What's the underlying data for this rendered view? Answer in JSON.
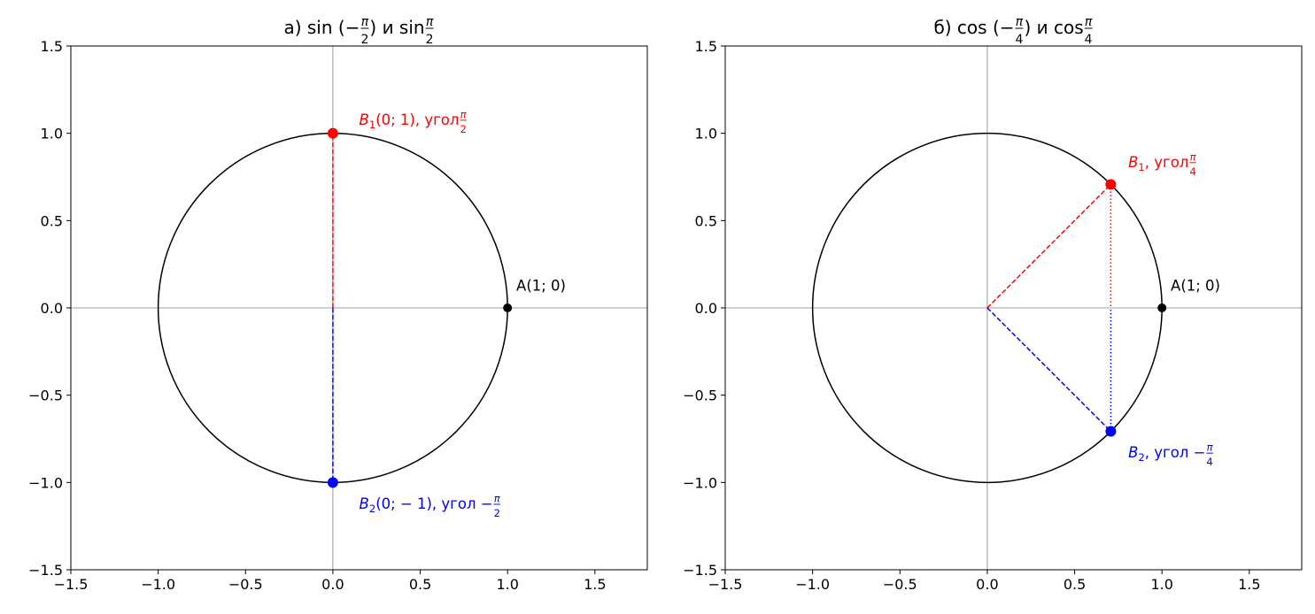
{
  "chart_data": [
    {
      "type": "line",
      "title": [
        {
          "t": "а) sin "
        },
        {
          "t": "("
        },
        {
          "t": "−"
        },
        {
          "frac": [
            "π",
            "2"
          ]
        },
        {
          "t": ")"
        },
        {
          "t": " и sin"
        },
        {
          "frac": [
            "π",
            "2"
          ]
        }
      ],
      "xlim": [
        -1.5,
        1.8
      ],
      "ylim": [
        -1.5,
        1.5
      ],
      "xticks": [
        -1.5,
        -1.0,
        -0.5,
        0.0,
        0.5,
        1.0,
        1.5
      ],
      "xtick_labels": [
        "−1.5",
        "−1.0",
        "−0.5",
        "0.0",
        "0.5",
        "1.0",
        "1.5"
      ],
      "yticks": [
        -1.5,
        -1.0,
        -0.5,
        0.0,
        0.5,
        1.0,
        1.5
      ],
      "ytick_labels": [
        "−1.5",
        "−1.0",
        "−0.5",
        "0.0",
        "0.5",
        "1.0",
        "1.5"
      ],
      "grid": false,
      "circle": {
        "center": [
          0,
          0
        ],
        "radius": 1,
        "color": "#000000"
      },
      "lines": [
        {
          "name": "b1-radius",
          "from": [
            0,
            0
          ],
          "to": [
            0,
            1
          ],
          "color": "#ff0000",
          "style": "dashed"
        },
        {
          "name": "b2-radius",
          "from": [
            0,
            0
          ],
          "to": [
            0,
            -1
          ],
          "color": "#0000ff",
          "style": "dashed"
        }
      ],
      "points": [
        {
          "name": "A",
          "x": 1,
          "y": 0,
          "color": "#000000",
          "size": "small"
        },
        {
          "name": "B1",
          "x": 0,
          "y": 1,
          "color": "#ff0000",
          "size": "large"
        },
        {
          "name": "B2",
          "x": 0,
          "y": -1,
          "color": "#0000ff",
          "size": "large"
        }
      ],
      "annotations": [
        {
          "name": "a-label",
          "x": 1.05,
          "y": 0.1,
          "color": "#000000",
          "parts": [
            {
              "t": "A(1; 0)"
            }
          ]
        },
        {
          "name": "b1-label",
          "x": 0.15,
          "y": 1.05,
          "color": "#ff0000",
          "parts": [
            {
              "t": "B",
              "it": true
            },
            {
              "t": "1",
              "sub": true
            },
            {
              "t": "(0; 1), угол "
            },
            {
              "frac": [
                "π",
                "2"
              ]
            }
          ]
        },
        {
          "name": "b2-label",
          "x": 0.15,
          "y": -1.15,
          "color": "#0000ff",
          "parts": [
            {
              "t": "B",
              "it": true
            },
            {
              "t": "2",
              "sub": true
            },
            {
              "t": "(0;  − 1), угол −"
            },
            {
              "frac": [
                "π",
                "2"
              ]
            }
          ]
        }
      ]
    },
    {
      "type": "line",
      "title": [
        {
          "t": "б) cos "
        },
        {
          "t": "("
        },
        {
          "t": "−"
        },
        {
          "frac": [
            "π",
            "4"
          ]
        },
        {
          "t": ")"
        },
        {
          "t": " и cos"
        },
        {
          "frac": [
            "π",
            "4"
          ]
        }
      ],
      "xlim": [
        -1.5,
        1.8
      ],
      "ylim": [
        -1.5,
        1.5
      ],
      "xticks": [
        -1.5,
        -1.0,
        -0.5,
        0.0,
        0.5,
        1.0,
        1.5
      ],
      "xtick_labels": [
        "−1.5",
        "−1.0",
        "−0.5",
        "0.0",
        "0.5",
        "1.0",
        "1.5"
      ],
      "yticks": [
        -1.5,
        -1.0,
        -0.5,
        0.0,
        0.5,
        1.0,
        1.5
      ],
      "ytick_labels": [
        "−1.5",
        "−1.0",
        "−0.5",
        "0.0",
        "0.5",
        "1.0",
        "1.5"
      ],
      "grid": false,
      "circle": {
        "center": [
          0,
          0
        ],
        "radius": 1,
        "color": "#000000"
      },
      "lines": [
        {
          "name": "b1-radius",
          "from": [
            0,
            0
          ],
          "to": [
            0.7071,
            0.7071
          ],
          "color": "#ff0000",
          "style": "dashed"
        },
        {
          "name": "b1-projection",
          "from": [
            0.7071,
            0.7071
          ],
          "to": [
            0.7071,
            0
          ],
          "color": "#ff0000",
          "style": "dotted"
        },
        {
          "name": "b2-radius",
          "from": [
            0,
            0
          ],
          "to": [
            0.7071,
            -0.7071
          ],
          "color": "#0000ff",
          "style": "dashed"
        },
        {
          "name": "b2-projection",
          "from": [
            0.7071,
            -0.7071
          ],
          "to": [
            0.7071,
            0
          ],
          "color": "#0000ff",
          "style": "dotted"
        }
      ],
      "points": [
        {
          "name": "A",
          "x": 1,
          "y": 0,
          "color": "#000000",
          "size": "small"
        },
        {
          "name": "B1",
          "x": 0.7071,
          "y": 0.7071,
          "color": "#ff0000",
          "size": "large"
        },
        {
          "name": "B2",
          "x": 0.7071,
          "y": -0.7071,
          "color": "#0000ff",
          "size": "large"
        }
      ],
      "annotations": [
        {
          "name": "a-label",
          "x": 1.05,
          "y": 0.1,
          "color": "#000000",
          "parts": [
            {
              "t": "A(1; 0)"
            }
          ]
        },
        {
          "name": "b1-label",
          "x": 0.807,
          "y": 0.807,
          "color": "#ff0000",
          "parts": [
            {
              "t": "B",
              "it": true
            },
            {
              "t": "1",
              "sub": true
            },
            {
              "t": ", угол "
            },
            {
              "frac": [
                "π",
                "4"
              ]
            }
          ]
        },
        {
          "name": "b2-label",
          "x": 0.807,
          "y": -0.857,
          "color": "#0000ff",
          "parts": [
            {
              "t": "B",
              "it": true
            },
            {
              "t": "2",
              "sub": true
            },
            {
              "t": ", угол −"
            },
            {
              "frac": [
                "π",
                "4"
              ]
            }
          ]
        }
      ]
    }
  ]
}
